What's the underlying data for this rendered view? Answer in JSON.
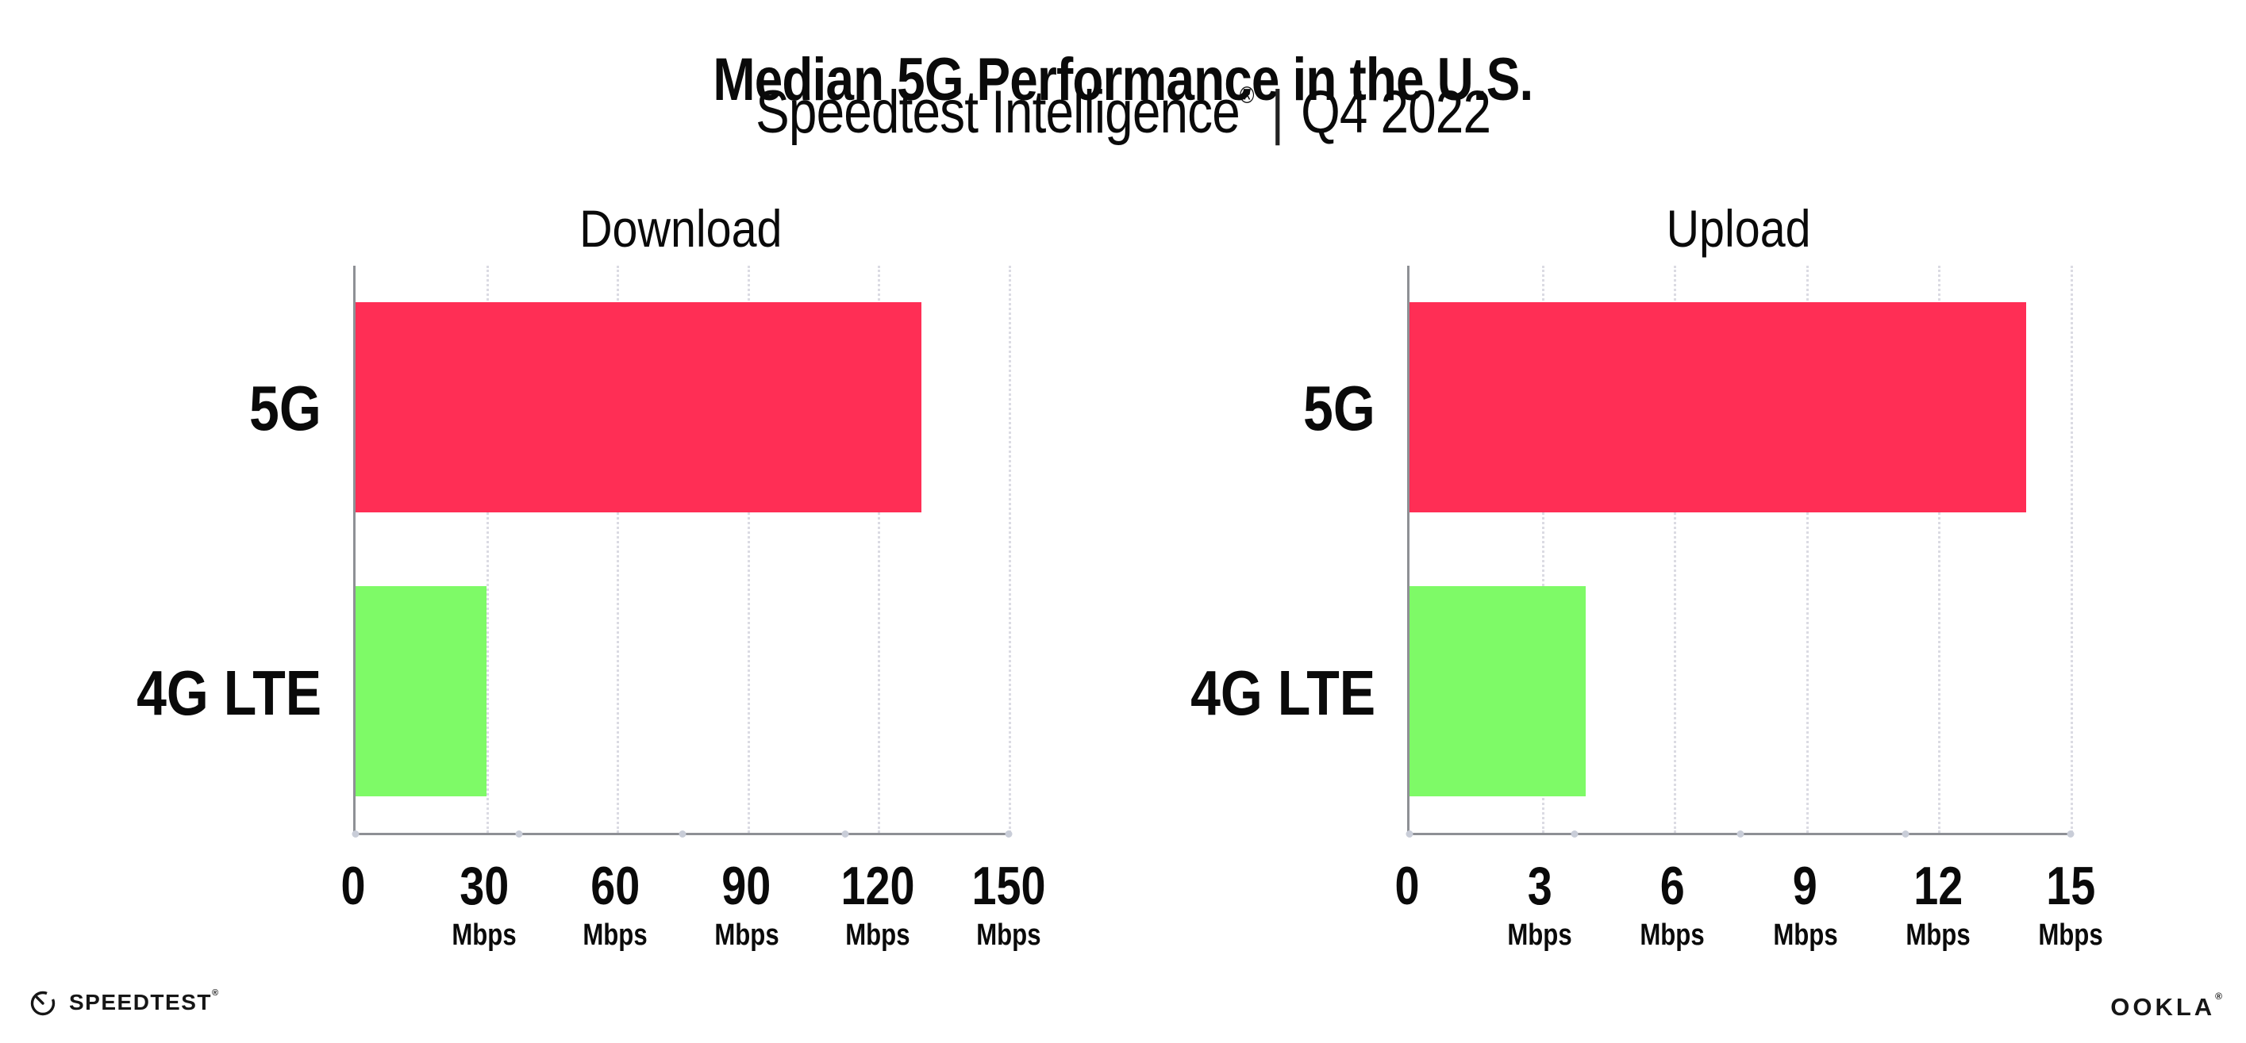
{
  "header": {
    "title": "Median 5G Performance in the U.S.",
    "subtitle": {
      "product": "Speedtest Intelligence",
      "registered": "®",
      "divider": "|",
      "period": "Q4 2022"
    }
  },
  "chart_data": [
    {
      "type": "bar",
      "orientation": "horizontal",
      "title": "Download",
      "categories": [
        "5G",
        "4G LTE"
      ],
      "values": [
        130,
        30
      ],
      "unit": "Mbps",
      "xlim": [
        0,
        150
      ],
      "xticks": [
        0,
        30,
        60,
        90,
        120,
        150
      ],
      "bar_colors": [
        "#FF2E55",
        "#7EFA67"
      ],
      "grid": "vertical-dotted",
      "legend": "none"
    },
    {
      "type": "bar",
      "orientation": "horizontal",
      "title": "Upload",
      "categories": [
        "5G",
        "4G LTE"
      ],
      "values": [
        14,
        4
      ],
      "unit": "Mbps",
      "xlim": [
        0,
        15
      ],
      "xticks": [
        0,
        3,
        6,
        9,
        12,
        15
      ],
      "bar_colors": [
        "#FF2E55",
        "#7EFA67"
      ],
      "grid": "vertical-dotted",
      "legend": "none"
    }
  ],
  "footer": {
    "speedtest_wordmark": "SPEEDTEST",
    "speedtest_mark": "®",
    "ookla_wordmark": "OOKLA",
    "ookla_mark": "®"
  },
  "colors": {
    "bar_5g": "#FF2E55",
    "bar_4g_lte": "#7EFA67",
    "axis_line": "#8e9095",
    "gridline": "#dbdbe3",
    "axis_dot": "#c9cdd8",
    "text": "#0a0a0a",
    "background": "#ffffff"
  }
}
